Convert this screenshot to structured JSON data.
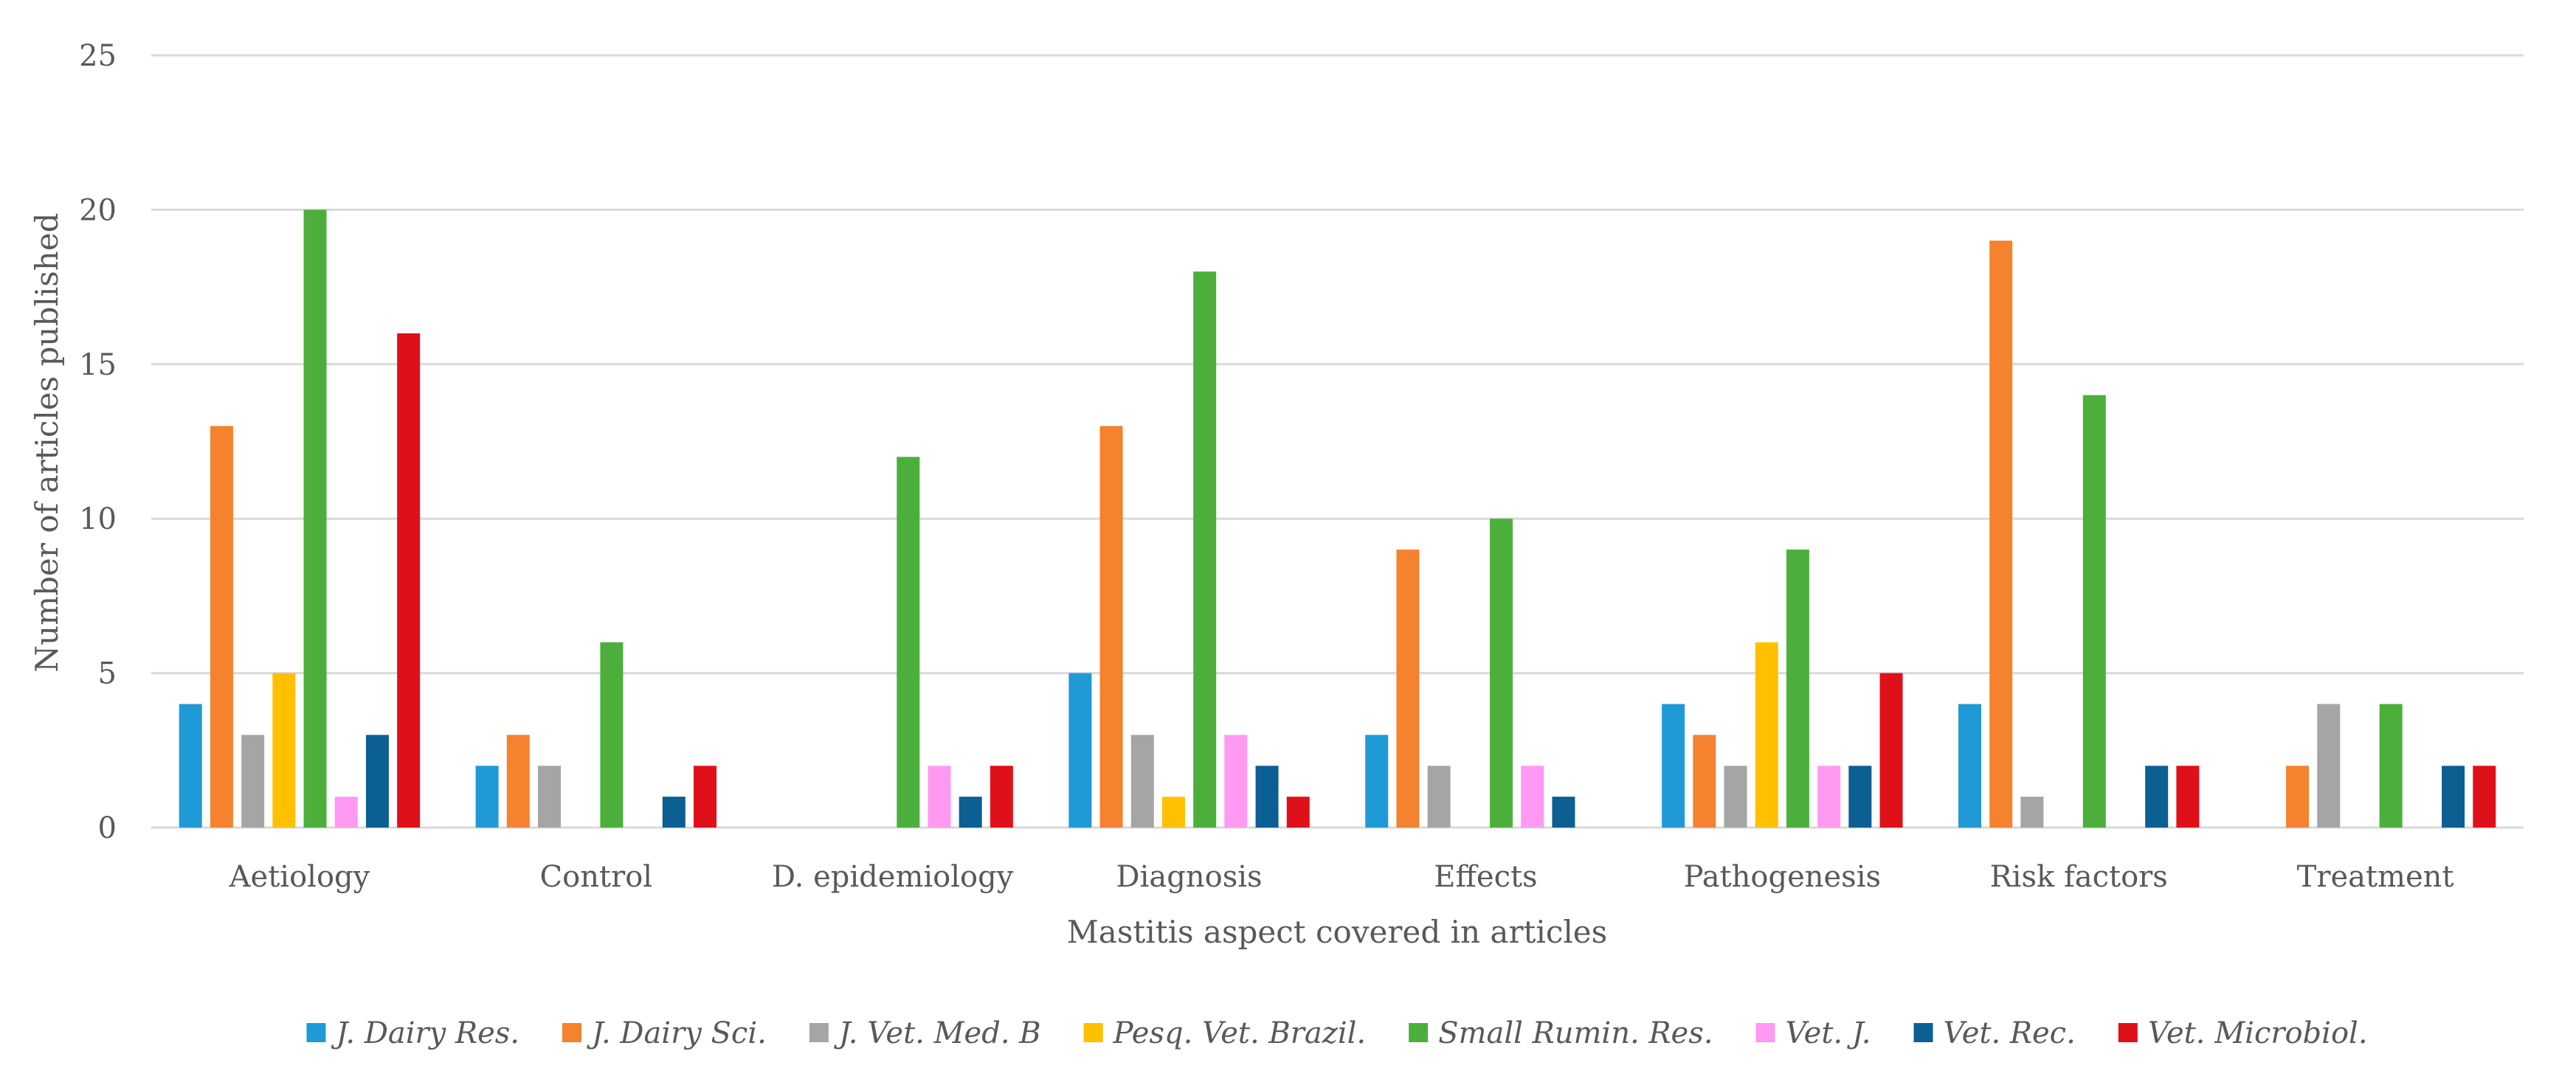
{
  "chart_data": {
    "type": "bar",
    "title": "",
    "xlabel": "Mastitis aspect covered in articles",
    "ylabel": "Number of articles published",
    "ylim": [
      0,
      25
    ],
    "yticks": [
      0,
      5,
      10,
      15,
      20,
      25
    ],
    "grid": true,
    "legend_position": "bottom",
    "categories": [
      "Aetiology",
      "Control",
      "D. epidemiology",
      "Diagnosis",
      "Effects",
      "Pathogenesis",
      "Risk factors",
      "Treatment"
    ],
    "series": [
      {
        "name": "J. Dairy Res.",
        "color": "#1f9ad6",
        "values": [
          4,
          2,
          0,
          5,
          3,
          4,
          4,
          0
        ]
      },
      {
        "name": "J. Dairy Sci.",
        "color": "#f5822e",
        "values": [
          13,
          3,
          0,
          13,
          9,
          3,
          19,
          2
        ]
      },
      {
        "name": "J. Vet. Med. B",
        "color": "#a5a5a5",
        "values": [
          3,
          2,
          0,
          3,
          2,
          2,
          1,
          4
        ]
      },
      {
        "name": "Pesq. Vet. Brazil.",
        "color": "#ffc000",
        "values": [
          5,
          0,
          0,
          1,
          0,
          6,
          0,
          0
        ]
      },
      {
        "name": "Small Rumin. Res.",
        "color": "#4caf3c",
        "values": [
          20,
          6,
          12,
          18,
          10,
          9,
          14,
          4
        ]
      },
      {
        "name": "Vet. J.",
        "color": "#ff99f2",
        "values": [
          1,
          0,
          2,
          3,
          2,
          2,
          0,
          0
        ]
      },
      {
        "name": "Vet. Rec.",
        "color": "#0b5f92",
        "values": [
          3,
          1,
          1,
          2,
          1,
          2,
          2,
          2
        ]
      },
      {
        "name": "Vet. Microbiol.",
        "color": "#e0101a",
        "values": [
          16,
          2,
          2,
          1,
          0,
          5,
          2,
          2
        ]
      }
    ]
  }
}
